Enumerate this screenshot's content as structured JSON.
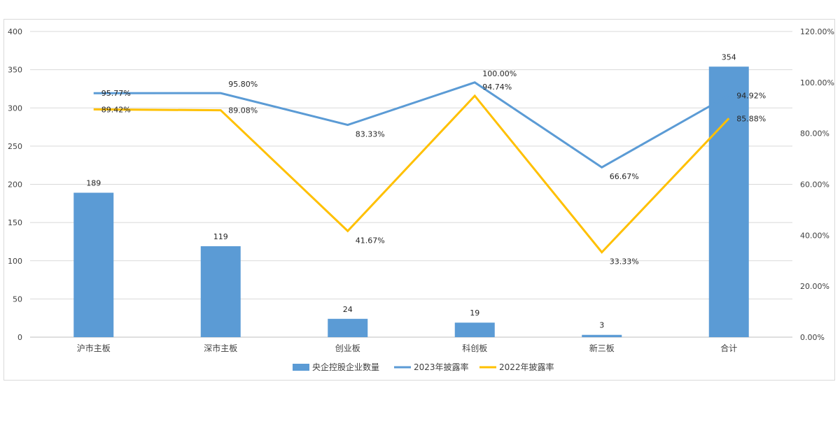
{
  "chart_data": {
    "type": "bar",
    "categories": [
      "沪市主板",
      "深市主板",
      "创业板",
      "科创板",
      "新三板",
      "合计"
    ],
    "series": [
      {
        "name": "央企控股企业数量",
        "type": "bar",
        "axis": "left",
        "color": "#5B9BD5",
        "values": [
          189,
          119,
          24,
          19,
          3,
          354
        ],
        "labels": [
          "189",
          "119",
          "24",
          "19",
          "3",
          "354"
        ]
      },
      {
        "name": "2023年披露率",
        "type": "line",
        "axis": "right",
        "color": "#5B9BD5",
        "values": [
          0.9577,
          0.958,
          0.8333,
          1.0,
          0.6667,
          0.9492
        ],
        "labels": [
          "95.77%",
          "95.80%",
          "83.33%",
          "100.00%",
          "66.67%",
          "94.92%"
        ]
      },
      {
        "name": "2022年披露率",
        "type": "line",
        "axis": "right",
        "color": "#FFC000",
        "values": [
          0.8942,
          0.8908,
          0.4167,
          0.9474,
          0.3333,
          0.8588
        ],
        "labels": [
          "89.42%",
          "89.08%",
          "41.67%",
          "94.74%",
          "33.33%",
          "85.88%"
        ]
      }
    ],
    "ylim_left": [
      0,
      400
    ],
    "yticks_left": [
      "0",
      "50",
      "100",
      "150",
      "200",
      "250",
      "300",
      "350",
      "400"
    ],
    "ylim_right": [
      0,
      1.2
    ],
    "yticks_right": [
      "0.00%",
      "20.00%",
      "40.00%",
      "60.00%",
      "80.00%",
      "100.00%",
      "120.00%"
    ],
    "grid": true,
    "legend_position": "bottom",
    "title": "",
    "xlabel": "",
    "ylabel": ""
  }
}
